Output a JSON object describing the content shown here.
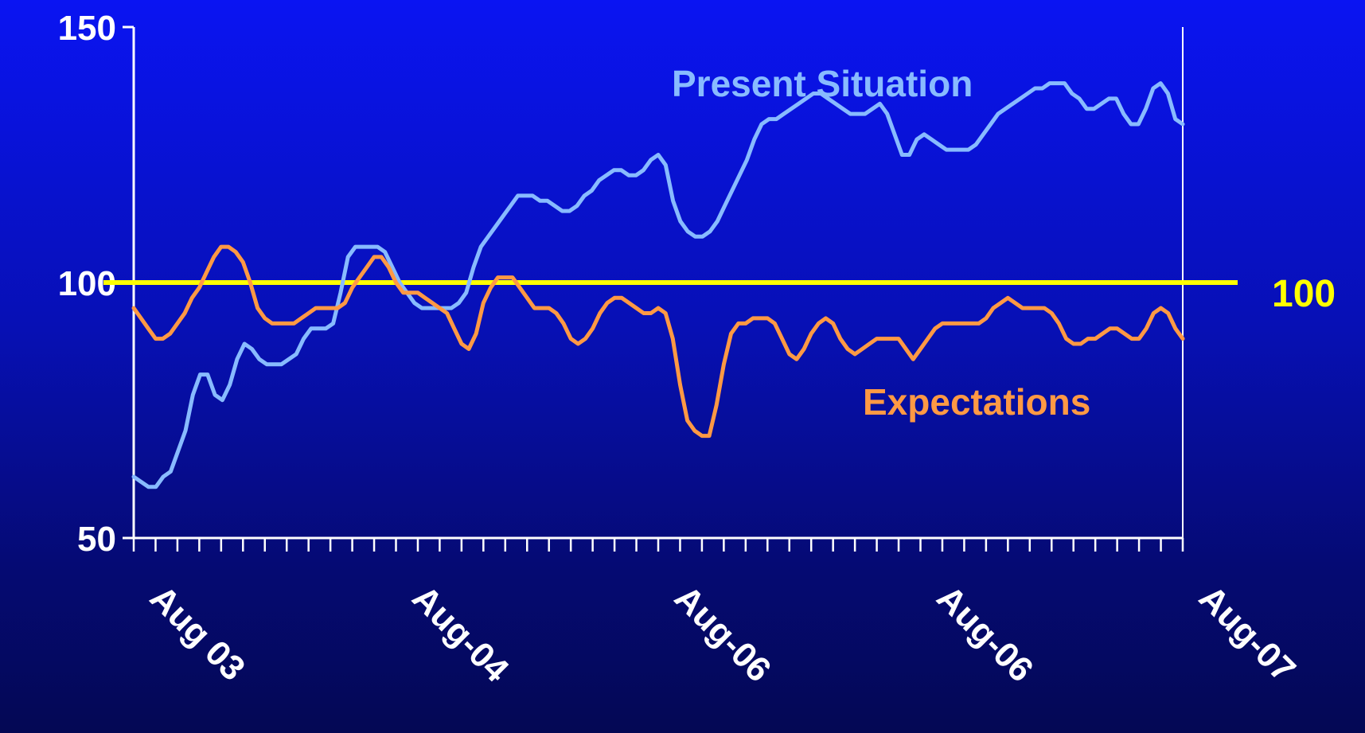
{
  "chart_data": {
    "type": "line",
    "title": "",
    "xlabel": "",
    "ylabel": "",
    "ylim": [
      50,
      150
    ],
    "yticks": [
      "50",
      "100",
      "150"
    ],
    "x_tick_labels": [
      "Aug 03",
      "Aug-04",
      "Aug-06",
      "Aug-06",
      "Aug-07"
    ],
    "minor_tick_count": 48,
    "grid": false,
    "legend": "none (series labelled directly on chart)",
    "reference_line": {
      "value": 100,
      "label": "100",
      "color": "#ffff00"
    },
    "series": [
      {
        "name": "Present Situation",
        "color": "#88bbff",
        "values": [
          62,
          61,
          60,
          60,
          62,
          63,
          67,
          71,
          78,
          82,
          82,
          78,
          77,
          80,
          85,
          88,
          87,
          85,
          84,
          84,
          84,
          85,
          86,
          89,
          91,
          91,
          91,
          92,
          98,
          105,
          107,
          107,
          107,
          107,
          106,
          103,
          100,
          98,
          96,
          95,
          95,
          95,
          95,
          95,
          96,
          98,
          103,
          107,
          109,
          111,
          113,
          115,
          117,
          117,
          117,
          116,
          116,
          115,
          114,
          114,
          115,
          117,
          118,
          120,
          121,
          122,
          122,
          121,
          121,
          122,
          124,
          125,
          123,
          116,
          112,
          110,
          109,
          109,
          110,
          112,
          115,
          118,
          121,
          124,
          128,
          131,
          132,
          132,
          133,
          134,
          135,
          136,
          137,
          137,
          136,
          135,
          134,
          133,
          133,
          133,
          134,
          135,
          133,
          129,
          125,
          125,
          128,
          129,
          128,
          127,
          126,
          126,
          126,
          126,
          127,
          129,
          131,
          133,
          134,
          135,
          136,
          137,
          138,
          138,
          139,
          139,
          139,
          137,
          136,
          134,
          134,
          135,
          136,
          136,
          133,
          131,
          131,
          134,
          138,
          139,
          137,
          132,
          131
        ]
      },
      {
        "name": "Expectations",
        "color": "#ff9944",
        "values": [
          95,
          93,
          91,
          89,
          89,
          90,
          92,
          94,
          97,
          99,
          102,
          105,
          107,
          107,
          106,
          104,
          100,
          95,
          93,
          92,
          92,
          92,
          92,
          93,
          94,
          95,
          95,
          95,
          95,
          96,
          99,
          101,
          103,
          105,
          105,
          103,
          100,
          98,
          98,
          98,
          97,
          96,
          95,
          94,
          91,
          88,
          87,
          90,
          96,
          99,
          101,
          101,
          101,
          99,
          97,
          95,
          95,
          95,
          94,
          92,
          89,
          88,
          89,
          91,
          94,
          96,
          97,
          97,
          96,
          95,
          94,
          94,
          95,
          94,
          89,
          80,
          73,
          71,
          70,
          70,
          76,
          84,
          90,
          92,
          92,
          93,
          93,
          93,
          92,
          89,
          86,
          85,
          87,
          90,
          92,
          93,
          92,
          89,
          87,
          86,
          87,
          88,
          89,
          89,
          89,
          89,
          87,
          85,
          87,
          89,
          91,
          92,
          92,
          92,
          92,
          92,
          92,
          93,
          95,
          96,
          97,
          96,
          95,
          95,
          95,
          95,
          94,
          92,
          89,
          88,
          88,
          89,
          89,
          90,
          91,
          91,
          90,
          89,
          89,
          91,
          94,
          95,
          94,
          91,
          89
        ]
      }
    ]
  }
}
